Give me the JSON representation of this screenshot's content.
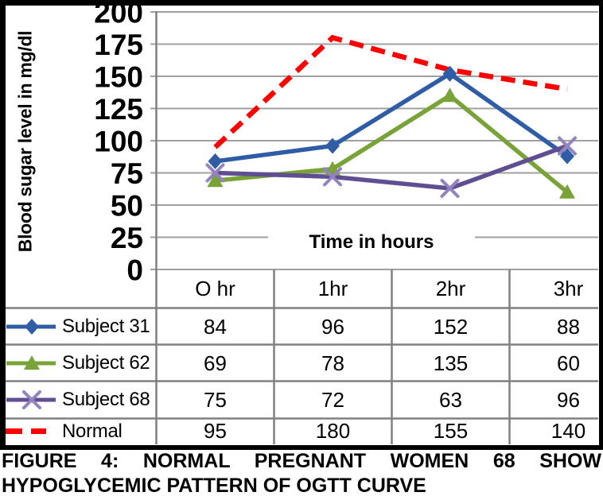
{
  "chart_data": {
    "type": "line",
    "title": "",
    "ylabel": "Blood sugar level in mg/dl",
    "xlabel": "Time in hours",
    "categories": [
      "O hr",
      "1hr",
      "2hr",
      "3hr"
    ],
    "series": [
      {
        "name": "Subject 31",
        "values": [
          84,
          96,
          152,
          88
        ],
        "color": "#2E5DA6",
        "marker": "diamond",
        "line_style": "solid"
      },
      {
        "name": "Subject 62",
        "values": [
          69,
          78,
          135,
          60
        ],
        "color": "#79A239",
        "marker": "triangle",
        "line_style": "solid"
      },
      {
        "name": "Subject 68",
        "values": [
          75,
          72,
          63,
          96
        ],
        "color": "#604E92",
        "marker": "x",
        "marker_color": "#9383BE",
        "line_style": "solid"
      },
      {
        "name": "Normal",
        "values": [
          95,
          180,
          155,
          140
        ],
        "color": "#FF0000",
        "marker": "none",
        "line_style": "dashed"
      }
    ],
    "ylim": [
      0,
      200
    ],
    "ytick_step": 25,
    "yticks": [
      0,
      25,
      50,
      75,
      100,
      125,
      150,
      175,
      200
    ],
    "grid": true,
    "legend_position": "left-of-data-table"
  },
  "table": {
    "columns": [
      "O hr",
      "1hr",
      "2hr",
      "3hr"
    ],
    "rows": [
      {
        "label": "Subject 31",
        "values": [
          "84",
          "96",
          "152",
          "88"
        ]
      },
      {
        "label": "Subject 62",
        "values": [
          "69",
          "78",
          "135",
          "60"
        ]
      },
      {
        "label": "Subject 68",
        "values": [
          "75",
          "72",
          "63",
          "96"
        ]
      },
      {
        "label": "Normal",
        "values": [
          "95",
          "180",
          "155",
          "140"
        ]
      }
    ]
  },
  "caption": {
    "line1": "FIGURE 4: NORMAL PREGNANT WOMEN 68 SHOW",
    "line2": "HYPOGLYCEMIC PATTERN OF OGTT CURVE"
  },
  "style": {
    "grid_color": "#A0A0A0",
    "table_line_color": "#808080",
    "axis_text_color": "#000000",
    "background": "#FFFFFF",
    "border_color": "#000000"
  }
}
